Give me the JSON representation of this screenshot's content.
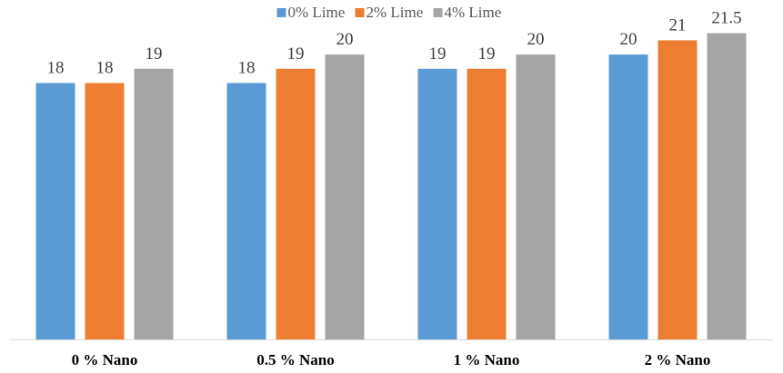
{
  "chart_data": {
    "type": "bar",
    "title": "",
    "xlabel": "",
    "ylabel": "",
    "categories": [
      "0 % Nano",
      "0.5 % Nano",
      "1 % Nano",
      "2 % Nano"
    ],
    "series": [
      {
        "name": "0% Lime",
        "color": "#5b9bd5",
        "values": [
          18,
          18,
          19,
          20
        ],
        "labels": [
          "18",
          "18",
          "19",
          "20"
        ]
      },
      {
        "name": "2% Lime",
        "color": "#ed7d31",
        "values": [
          18,
          19,
          19,
          21
        ],
        "labels": [
          "18",
          "19",
          "19",
          "21"
        ]
      },
      {
        "name": "4% Lime",
        "color": "#a5a5a5",
        "values": [
          19,
          20,
          20,
          21.5
        ],
        "labels": [
          "19",
          "20",
          "20",
          "21.5"
        ]
      }
    ],
    "ylim": [
      0,
      22.3
    ],
    "grid": false,
    "legend_position": "top-center",
    "data_labels": true,
    "axis_color": "#d9d9d9"
  }
}
